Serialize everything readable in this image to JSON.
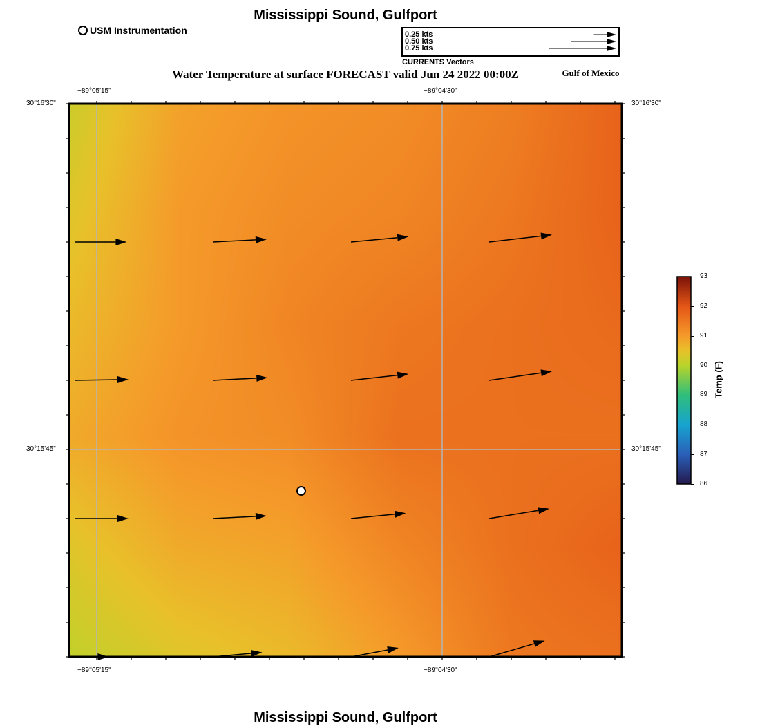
{
  "title": "Mississippi Sound, Gulfport",
  "subtitle": "Water Temperature at surface FORECAST valid Jun 24 2022 00:00Z",
  "region_label": "Gulf of Mexico",
  "legend": {
    "marker_label": "USM Instrumentation"
  },
  "vector_legend": {
    "caption": "CURRENTS Vectors",
    "entries": [
      {
        "label": "0.25 kts",
        "speed_kts": 0.25
      },
      {
        "label": "0.50 kts",
        "speed_kts": 0.5
      },
      {
        "label": "0.75 kts",
        "speed_kts": 0.75
      }
    ]
  },
  "axes": {
    "lon_ticks": [
      {
        "label": "−89°05'15\"",
        "lon_min": -89.0875
      },
      {
        "label": "−89°04'30\"",
        "lon_min": -89.075
      }
    ],
    "lat_ticks": [
      {
        "label": "30°16'30\"",
        "lat": 30.275
      },
      {
        "label": "30°15'45\"",
        "lat": 30.2625
      }
    ]
  },
  "colorbar": {
    "title": "Temp (F)",
    "ticks": [
      "93",
      "92",
      "91",
      "90",
      "89",
      "88",
      "87",
      "86"
    ],
    "min": 86,
    "max": 93,
    "stops": [
      {
        "v": 86,
        "color": "#241a4e"
      },
      {
        "v": 87,
        "color": "#2a5fb8"
      },
      {
        "v": 88,
        "color": "#17a4d0"
      },
      {
        "v": 89,
        "color": "#2fbe7a"
      },
      {
        "v": 90,
        "color": "#b9d42a"
      },
      {
        "v": 90.5,
        "color": "#e8c12a"
      },
      {
        "v": 91,
        "color": "#f59a2a"
      },
      {
        "v": 92,
        "color": "#e45516"
      },
      {
        "v": 93,
        "color": "#7a1208"
      }
    ]
  },
  "temperature_field": {
    "description_units": "F",
    "cols": 6,
    "rows": 6,
    "values": [
      [
        90.2,
        90.9,
        91.1,
        91.2,
        91.4,
        91.8
      ],
      [
        90.4,
        91.0,
        91.2,
        91.3,
        91.5,
        91.8
      ],
      [
        90.6,
        91.0,
        91.3,
        91.5,
        91.6,
        91.7
      ],
      [
        90.8,
        91.1,
        91.2,
        91.6,
        91.6,
        91.6
      ],
      [
        90.4,
        90.8,
        90.9,
        91.3,
        91.6,
        91.8
      ],
      [
        90.1,
        90.4,
        90.6,
        91.0,
        91.5,
        91.6
      ]
    ]
  },
  "current_vectors": [
    {
      "row": 1,
      "col": 0,
      "u": 0.58,
      "v": 0.0
    },
    {
      "row": 1,
      "col": 1,
      "u": 0.6,
      "v": 0.03
    },
    {
      "row": 1,
      "col": 2,
      "u": 0.64,
      "v": 0.06
    },
    {
      "row": 1,
      "col": 3,
      "u": 0.7,
      "v": 0.08
    },
    {
      "row": 2,
      "col": 0,
      "u": 0.6,
      "v": 0.01
    },
    {
      "row": 2,
      "col": 1,
      "u": 0.61,
      "v": 0.03
    },
    {
      "row": 2,
      "col": 2,
      "u": 0.64,
      "v": 0.07
    },
    {
      "row": 2,
      "col": 3,
      "u": 0.7,
      "v": 0.1
    },
    {
      "row": 3,
      "col": 0,
      "u": 0.6,
      "v": 0.0
    },
    {
      "row": 3,
      "col": 1,
      "u": 0.6,
      "v": 0.03
    },
    {
      "row": 3,
      "col": 2,
      "u": 0.61,
      "v": 0.06
    },
    {
      "row": 3,
      "col": 3,
      "u": 0.67,
      "v": 0.11
    },
    {
      "row": 4,
      "col": 0,
      "u": 0.38,
      "v": 0.0
    },
    {
      "row": 4,
      "col": 1,
      "u": 0.55,
      "v": 0.05
    },
    {
      "row": 4,
      "col": 2,
      "u": 0.53,
      "v": 0.1
    },
    {
      "row": 4,
      "col": 3,
      "u": 0.62,
      "v": 0.18
    }
  ],
  "station": {
    "lon_frac": 0.42,
    "lat_frac": 0.3
  },
  "colors": {
    "grid": "#b5b5b5",
    "frame": "#000000"
  }
}
